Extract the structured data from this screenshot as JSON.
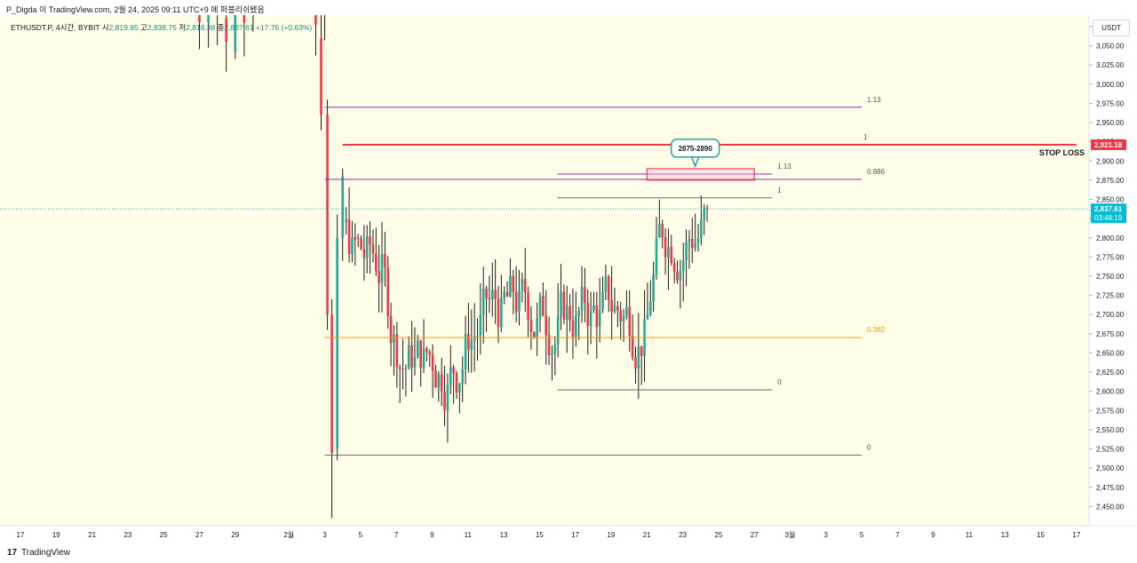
{
  "header": {
    "attribution": "P_Digda 이 TradingView.com, 2월 24, 2025 09:11 UTC+9 에 퍼블리쉬됐음"
  },
  "legend": {
    "symbol": "ETHUSDT.P, 4시간, BYBIT",
    "o_label": "시",
    "o": "2,819.85",
    "h_label": "고",
    "h": "2,838.75",
    "l_label": "저",
    "l": "2,818.38",
    "c_label": "종",
    "c": "2,837.61",
    "change": "+17.76 (+0.63%)"
  },
  "currency": "USDT",
  "footer": {
    "logo": "17",
    "brand": "TradingView"
  },
  "colors": {
    "background": "#fffde7",
    "up": "#22ab94",
    "down": "#f23645",
    "stop": "#f23645",
    "fib_purple": "#9c27b0",
    "fib_orange": "#ff9800",
    "current": "#00bcd4",
    "zone_box": "#e91e63"
  },
  "chart_data": {
    "type": "candlestick",
    "y_axis": {
      "range": [
        2425,
        3090
      ],
      "ticks": [
        "2,450.00",
        "2,475.00",
        "2,500.00",
        "2,525.00",
        "2,550.00",
        "2,575.00",
        "2,600.00",
        "2,625.00",
        "2,650.00",
        "2,675.00",
        "2,700.00",
        "2,725.00",
        "2,750.00",
        "2,775.00",
        "2,800.00",
        "2,825.00",
        "2,850.00",
        "2,875.00",
        "2,900.00",
        "2,925.00",
        "2,950.00",
        "2,975.00",
        "3,000.00",
        "3,025.00",
        "3,050.00",
        "3,075.00"
      ]
    },
    "x_axis": {
      "dates": [
        "2025-01-17",
        "2025-01-19",
        "2025-01-21",
        "2025-01-23",
        "2025-01-25",
        "2025-01-27",
        "2025-01-29",
        "2025-02-01",
        "2025-02-03",
        "2025-02-05",
        "2025-02-07",
        "2025-02-09",
        "2025-02-11",
        "2025-02-13",
        "2025-02-15",
        "2025-02-17",
        "2025-02-19",
        "2025-02-21",
        "2025-02-23",
        "2025-02-25",
        "2025-02-27",
        "2025-03-01",
        "2025-03-03",
        "2025-03-05",
        "2025-03-07",
        "2025-03-09",
        "2025-03-11",
        "2025-03-13",
        "2025-03-15",
        "2025-03-17"
      ],
      "labels": [
        "17",
        "19",
        "21",
        "23",
        "25",
        "27",
        "29",
        "2월",
        "3",
        "5",
        "7",
        "9",
        "11",
        "13",
        "15",
        "17",
        "19",
        "21",
        "23",
        "25",
        "27",
        "3월",
        "3",
        "5",
        "7",
        "9",
        "11",
        "13",
        "15",
        "17"
      ]
    },
    "candles_summary": {
      "jan_range": [
        3050,
        3160
      ],
      "feb3_crash_low": 2435,
      "range_high": 2860,
      "range_low": 2520,
      "last_close": 2837.61
    },
    "price_labels": [
      {
        "text": "2,921.18",
        "value": 2921.18,
        "kind": "stop"
      },
      {
        "text": "2,837.61",
        "sub": "03:48:19",
        "value": 2837.61,
        "kind": "current"
      }
    ],
    "levels": [
      {
        "label": "1.13",
        "value": 2970,
        "color": "#9c27b0",
        "from": "2025-02-03",
        "to": "2025-03-05"
      },
      {
        "label": "1",
        "value": 2921.18,
        "color": "#f23645",
        "from": "2025-02-04",
        "to": "2025-03-17",
        "heavy": true
      },
      {
        "label": "0.886",
        "value": 2876,
        "color": "#9c27b0",
        "from": "2025-02-03",
        "to": "2025-03-05"
      },
      {
        "label": "0.382",
        "value": 2670,
        "color": "#ff9800",
        "from": "2025-02-03",
        "to": "2025-03-05"
      },
      {
        "label": "0",
        "value": 2517,
        "color": "#6b6b6b",
        "from": "2025-02-03",
        "to": "2025-03-05"
      },
      {
        "label": "1.13",
        "value": 2883,
        "color": "#9c27b0",
        "from": "2025-02-16",
        "to": "2025-02-28"
      },
      {
        "label": "1",
        "value": 2852,
        "color": "#6b6b6b",
        "from": "2025-02-16",
        "to": "2025-02-28"
      },
      {
        "label": "0",
        "value": 2602,
        "color": "#6b6b6b",
        "from": "2025-02-16",
        "to": "2025-02-28"
      }
    ],
    "zone": {
      "label": "2875-2890",
      "low": 2875,
      "high": 2890,
      "from": "2025-02-21",
      "to": "2025-02-27"
    },
    "annotations": [
      {
        "text": "STOP LOSS",
        "value": 2921.18
      }
    ]
  }
}
